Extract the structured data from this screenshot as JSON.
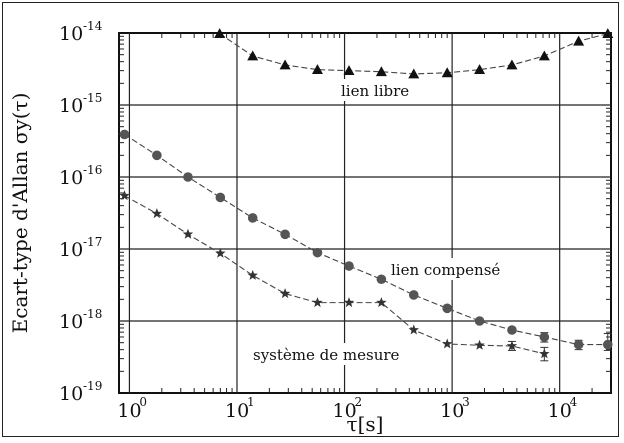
{
  "chart_data": {
    "type": "scatter",
    "title": "",
    "xlabel": "τ[s]",
    "ylabel": "Ecart-type d'Allan  σy(τ)",
    "xscale": "log",
    "yscale": "log",
    "xlim": [
      0.8,
      30000
    ],
    "ylim": [
      1e-19,
      1e-14
    ],
    "grid": true,
    "x_ticks": [
      {
        "value": 1,
        "base": "10",
        "exp": "0"
      },
      {
        "value": 10,
        "base": "10",
        "exp": "1"
      },
      {
        "value": 100,
        "base": "10",
        "exp": "2"
      },
      {
        "value": 1000,
        "base": "10",
        "exp": "3"
      },
      {
        "value": 10000,
        "base": "10",
        "exp": "4"
      }
    ],
    "y_ticks": [
      {
        "value": 1e-14,
        "base": "10",
        "exp": "-14"
      },
      {
        "value": 1e-15,
        "base": "10",
        "exp": "-15"
      },
      {
        "value": 1e-16,
        "base": "10",
        "exp": "-16"
      },
      {
        "value": 1e-17,
        "base": "10",
        "exp": "-17"
      },
      {
        "value": 1e-18,
        "base": "10",
        "exp": "-18"
      },
      {
        "value": 1e-19,
        "base": "10",
        "exp": "-19"
      }
    ],
    "series": [
      {
        "name": "lien libre",
        "marker": "triangle",
        "x": [
          6.9,
          14,
          28,
          56,
          110,
          220,
          440,
          900,
          1800,
          3600,
          7200,
          15000,
          28000
        ],
        "y": [
          9.8e-15,
          4.8e-15,
          3.6e-15,
          3.1e-15,
          3e-15,
          2.9e-15,
          2.7e-15,
          2.8e-15,
          3.1e-15,
          3.6e-15,
          4.8e-15,
          7.7e-15,
          9.8e-15
        ]
      },
      {
        "name": "lien compensé",
        "marker": "circle",
        "x": [
          0.9,
          1.8,
          3.5,
          7,
          14,
          28,
          56,
          110,
          220,
          440,
          900,
          1800,
          3600,
          7200,
          15000,
          28000
        ],
        "y": [
          3.9e-16,
          2e-16,
          1e-16,
          5.2e-17,
          2.7e-17,
          1.6e-17,
          8.9e-18,
          5.8e-18,
          3.8e-18,
          2.3e-18,
          1.5e-18,
          1e-18,
          7.5e-19,
          6e-19,
          4.7e-19,
          4.7e-19
        ],
        "error_high": [
          0,
          0,
          0,
          0,
          0,
          0,
          0,
          0,
          0,
          0,
          0,
          0,
          0,
          9e-20,
          7e-20,
          2e-19
        ],
        "error_low": [
          0,
          0,
          0,
          0,
          0,
          0,
          0,
          0,
          0,
          0,
          0,
          0,
          0,
          9e-20,
          7e-20,
          8e-20
        ]
      },
      {
        "name": "système de mesure",
        "marker": "star",
        "x": [
          0.9,
          1.8,
          3.5,
          7,
          14,
          28,
          56,
          110,
          220,
          440,
          900,
          1800,
          3600,
          7200
        ],
        "y": [
          5.5e-17,
          3.1e-17,
          1.6e-17,
          8.7e-18,
          4.3e-18,
          2.4e-18,
          1.8e-18,
          1.8e-18,
          1.8e-18,
          7.5e-19,
          4.8e-19,
          4.6e-19,
          4.5e-19,
          3.5e-19
        ],
        "error_high": [
          0,
          0,
          0,
          0,
          0,
          0,
          0,
          0,
          0,
          0,
          0,
          0,
          7e-20,
          8e-20
        ],
        "error_low": [
          0,
          0,
          0,
          0,
          0,
          0,
          0,
          0,
          0,
          0,
          0,
          0,
          6e-20,
          7e-20
        ]
      }
    ]
  }
}
